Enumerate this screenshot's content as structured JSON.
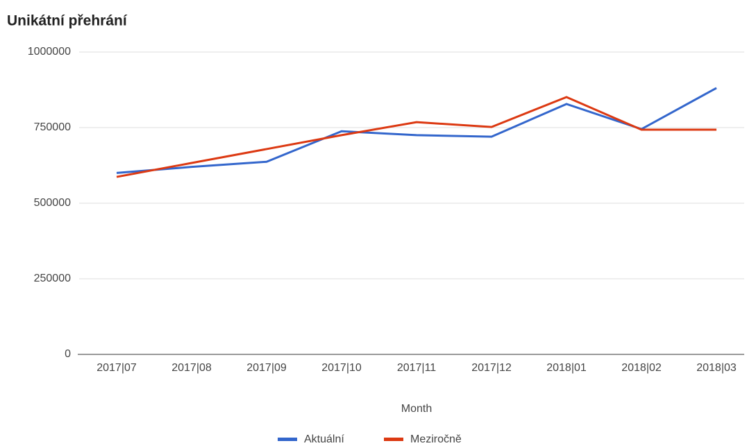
{
  "chart_data": {
    "type": "line",
    "title": "Unikátní přehrání",
    "x_label": "Month",
    "categories": [
      "2017|07",
      "2017|08",
      "2017|09",
      "2017|10",
      "2017|11",
      "2017|12",
      "2018|01",
      "2018|02",
      "2018|03"
    ],
    "series": [
      {
        "name": "Aktuální",
        "color": "#3366cc",
        "values": [
          600000,
          620000,
          637000,
          738000,
          725000,
          720000,
          828000,
          745000,
          881000
        ]
      },
      {
        "name": "Meziročně",
        "color": "#dc3912",
        "values": [
          587000,
          633000,
          679000,
          725000,
          768000,
          752000,
          851000,
          743000,
          743000
        ]
      }
    ],
    "ylim": [
      0,
      1000000
    ],
    "yticks": [
      0,
      250000,
      500000,
      750000,
      1000000
    ],
    "grid": true,
    "legend": "bottom"
  }
}
